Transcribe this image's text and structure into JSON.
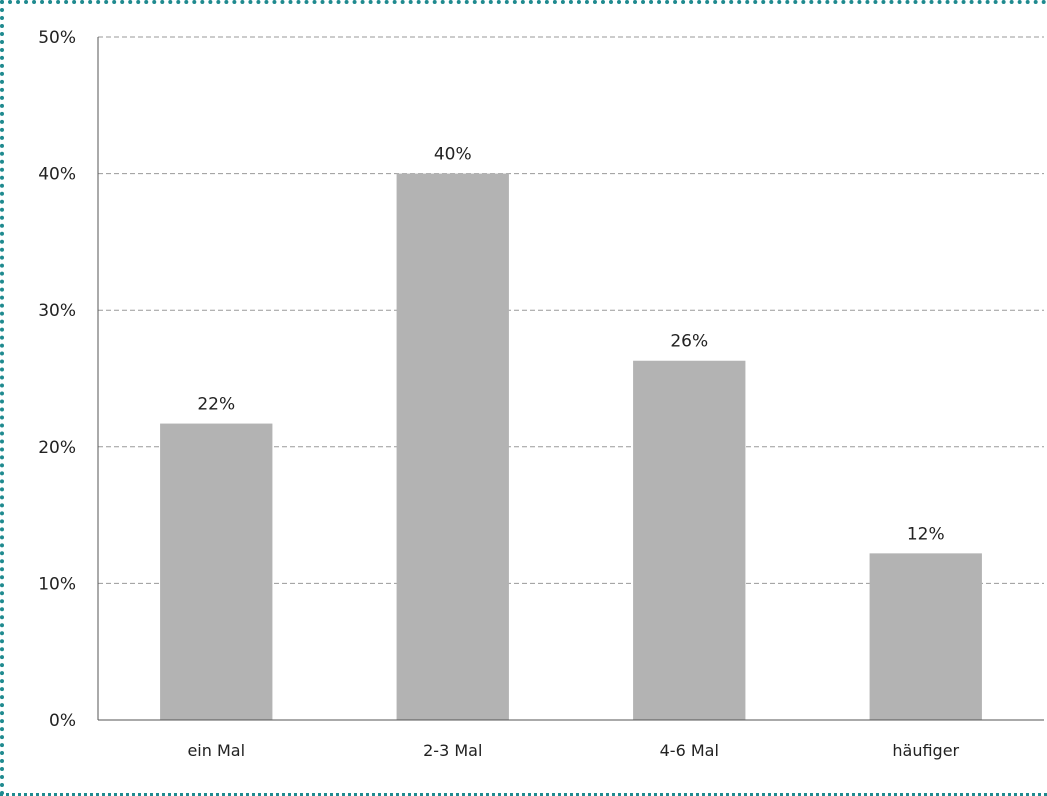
{
  "chart_data": {
    "type": "bar",
    "title": "",
    "xlabel": "",
    "ylabel": "",
    "categories": [
      "ein Mal",
      "2-3 Mal",
      "4-6 Mal",
      "häufiger"
    ],
    "values": [
      21.7,
      40,
      26.3,
      12.2
    ],
    "data_labels": [
      "22%",
      "40%",
      "26%",
      "12%"
    ],
    "ylim": [
      0,
      50
    ],
    "y_ticks": [
      0,
      10,
      20,
      30,
      40,
      50
    ],
    "y_tick_labels": [
      "0%",
      "10%",
      "20%",
      "30%",
      "40%",
      "50%"
    ],
    "grid": true,
    "legend": "none",
    "colors": {
      "bar": "#b3b3b3",
      "frame_border": "#1f8a8f",
      "gridline": "#9a9a9a"
    }
  }
}
